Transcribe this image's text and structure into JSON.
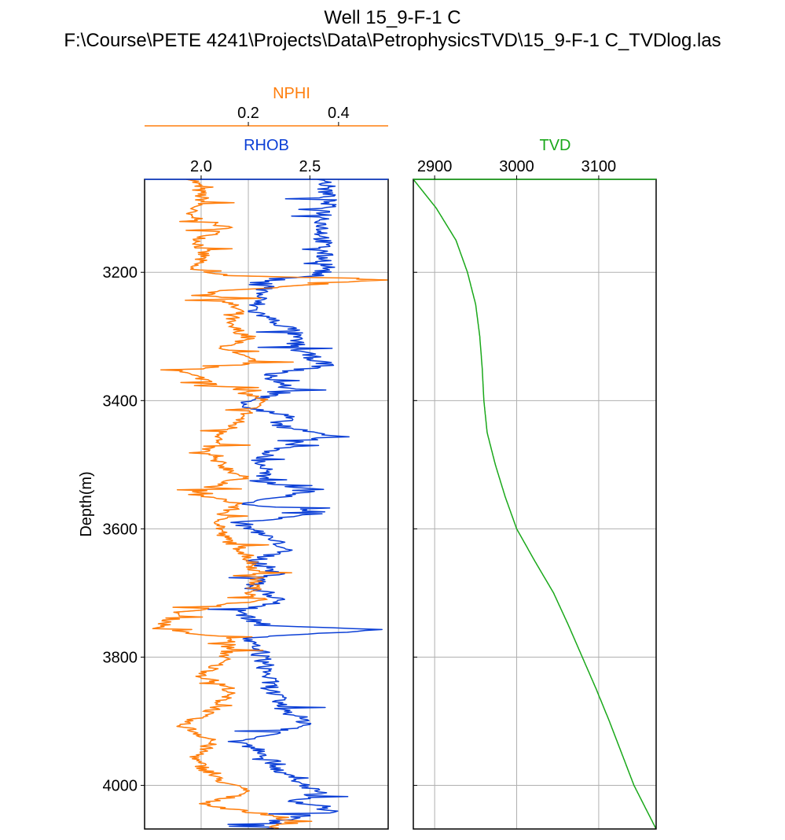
{
  "title_line1": "Well 15_9-F-1 C",
  "title_line2": "F:\\Course\\PETE 4241\\Projects\\Data\\PetrophysicsTVD\\15_9-F-1 C_TVDlog.las",
  "chart_data": [
    {
      "type": "line",
      "track": "left",
      "ylabel": "Depth(m)",
      "ylim": [
        3055,
        4068
      ],
      "y_inverted": true,
      "y_ticks": [
        "3200",
        "3400",
        "3600",
        "3800",
        "4000"
      ],
      "grid": true,
      "series": [
        {
          "name": "RHOB",
          "color": "#0b3fd6",
          "xlim": [
            1.74,
            2.86
          ],
          "x_ticks": [
            "2.0",
            "2.5"
          ],
          "depth_values": [
            3055,
            3090,
            3130,
            3170,
            3195,
            3205,
            3210,
            3230,
            3260,
            3290,
            3320,
            3345,
            3360,
            3385,
            3398,
            3410,
            3425,
            3440,
            3455,
            3470,
            3490,
            3510,
            3525,
            3540,
            3560,
            3575,
            3590,
            3610,
            3630,
            3650,
            3670,
            3690,
            3710,
            3730,
            3750,
            3757,
            3770,
            3800,
            3820,
            3850,
            3880,
            3905,
            3930,
            3950,
            3970,
            3990,
            4010,
            4025,
            4040,
            4055,
            4068
          ],
          "x_values": [
            2.57,
            2.58,
            2.56,
            2.56,
            2.58,
            2.52,
            2.35,
            2.28,
            2.24,
            2.42,
            2.44,
            2.58,
            2.3,
            2.42,
            2.24,
            2.21,
            2.4,
            2.34,
            2.6,
            2.4,
            2.26,
            2.3,
            2.25,
            2.55,
            2.18,
            2.58,
            2.18,
            2.28,
            2.4,
            2.25,
            2.35,
            2.22,
            2.38,
            2.18,
            2.28,
            2.85,
            2.2,
            2.28,
            2.3,
            2.32,
            2.38,
            2.5,
            2.2,
            2.3,
            2.35,
            2.4,
            2.55,
            2.42,
            2.6,
            2.35,
            2.3
          ]
        },
        {
          "name": "NPHI",
          "color": "#ff7f0e",
          "xlim": [
            -0.03,
            0.51
          ],
          "x_ticks": [
            "0.2",
            "0.4"
          ],
          "depth_values": [
            3055,
            3090,
            3110,
            3130,
            3150,
            3175,
            3195,
            3205,
            3212,
            3230,
            3260,
            3280,
            3300,
            3320,
            3340,
            3355,
            3375,
            3398,
            3410,
            3430,
            3450,
            3480,
            3500,
            3520,
            3545,
            3560,
            3580,
            3610,
            3640,
            3670,
            3700,
            3710,
            3730,
            3757,
            3770,
            3800,
            3830,
            3850,
            3880,
            3905,
            3930,
            3960,
            3990,
            4010,
            4030,
            4050,
            4068
          ],
          "x_values": [
            0.08,
            0.1,
            0.06,
            0.15,
            0.09,
            0.1,
            0.07,
            0.16,
            0.5,
            0.12,
            0.18,
            0.15,
            0.2,
            0.14,
            0.22,
            0.05,
            0.14,
            0.23,
            0.21,
            0.18,
            0.15,
            0.1,
            0.14,
            0.19,
            0.07,
            0.18,
            0.14,
            0.14,
            0.2,
            0.22,
            0.21,
            0.23,
            0.05,
            0.0,
            0.16,
            0.15,
            0.1,
            0.16,
            0.13,
            0.05,
            0.12,
            0.08,
            0.13,
            0.2,
            0.1,
            0.28,
            0.26
          ]
        }
      ]
    },
    {
      "type": "line",
      "track": "right",
      "ylim": [
        3055,
        4068
      ],
      "y_inverted": true,
      "grid": true,
      "series": [
        {
          "name": "TVD",
          "color": "#1aa81a",
          "xlim": [
            2874,
            3170
          ],
          "x_ticks": [
            "2900",
            "3000",
            "3100"
          ],
          "depth_values": [
            3055,
            3100,
            3150,
            3200,
            3250,
            3300,
            3350,
            3400,
            3450,
            3500,
            3550,
            3600,
            3650,
            3700,
            3750,
            3800,
            3850,
            3900,
            3950,
            4000,
            4068
          ],
          "x_values": [
            2874,
            2902,
            2926,
            2940,
            2950,
            2955,
            2958,
            2960,
            2964,
            2974,
            2986,
            3000,
            3022,
            3045,
            3063,
            3080,
            3097,
            3113,
            3128,
            3143,
            3170
          ]
        }
      ]
    }
  ]
}
